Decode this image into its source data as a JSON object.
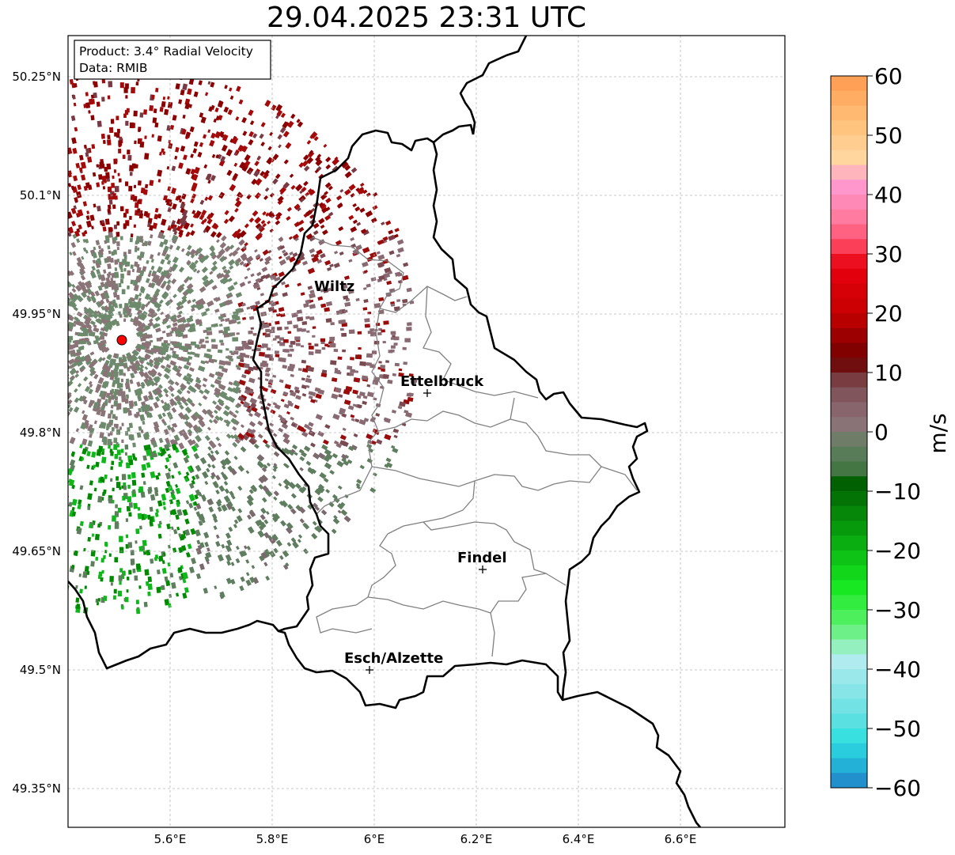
{
  "title": "29.04.2025 23:31 UTC",
  "info_box": {
    "product": "Product: 3.4° Radial Velocity",
    "data": "Data: RMIB"
  },
  "axes": {
    "lon_ticks": [
      "5.6°E",
      "5.8°E",
      "6°E",
      "6.2°E",
      "6.4°E",
      "6.6°E"
    ],
    "lat_ticks": [
      "50.25°N",
      "50.1°N",
      "49.95°N",
      "49.8°N",
      "49.65°N",
      "49.5°N",
      "49.35°N"
    ]
  },
  "cities": [
    {
      "name": "Wiltz"
    },
    {
      "name": "Ettelbruck"
    },
    {
      "name": "Findel"
    },
    {
      "name": "Esch/Alzette"
    }
  ],
  "colorbar": {
    "unit": "m/s",
    "min": -60,
    "max": 60,
    "tick_labels": [
      "60",
      "50",
      "40",
      "30",
      "20",
      "10",
      "0",
      "−10",
      "−20",
      "−30",
      "−40",
      "−50",
      "−60"
    ],
    "colors": {
      "positive_high": "#ff9a4f",
      "positive_mid": "#ff4e6a",
      "positive_red": "#e8000e",
      "positive_dark": "#6e0000",
      "zero_pos": "#8a6a72",
      "zero_neg": "#5e7e5e",
      "negative_dark": "#005a00",
      "negative_green": "#14e81e",
      "negative_light": "#8ff0b8",
      "negative_cyan": "#2ee0e0",
      "negative_blue": "#1f80c8"
    }
  },
  "colors": {
    "radar_site": "#ff0000",
    "border": "#000000",
    "canton_border": "#808080",
    "grid": "#b0b0b0"
  }
}
